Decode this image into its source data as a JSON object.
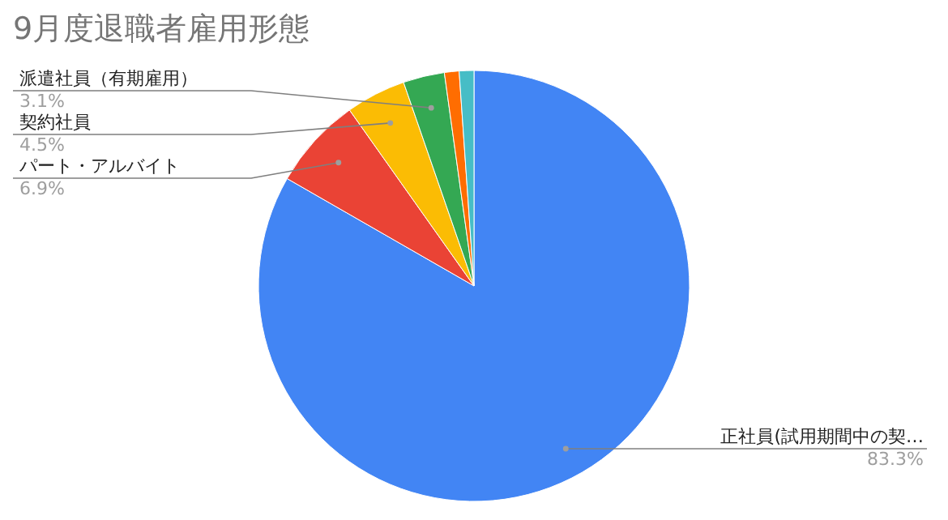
{
  "chart_data": {
    "type": "pie",
    "title": "9月度退職者雇用形態",
    "categories": [
      "正社員(試用期間中の契…",
      "パート・アルバイト",
      "契約社員",
      "派遣社員（有期雇用）",
      null,
      null
    ],
    "values": [
      83.3,
      6.9,
      4.5,
      3.1,
      1.1,
      1.1
    ],
    "colors": [
      "#4285f4",
      "#ea4335",
      "#fbbc04",
      "#34a853",
      "#ff6d01",
      "#46bdc6"
    ],
    "value_labels": [
      "83.3%",
      "6.9%",
      "4.5%",
      "3.1%",
      null,
      null
    ]
  }
}
